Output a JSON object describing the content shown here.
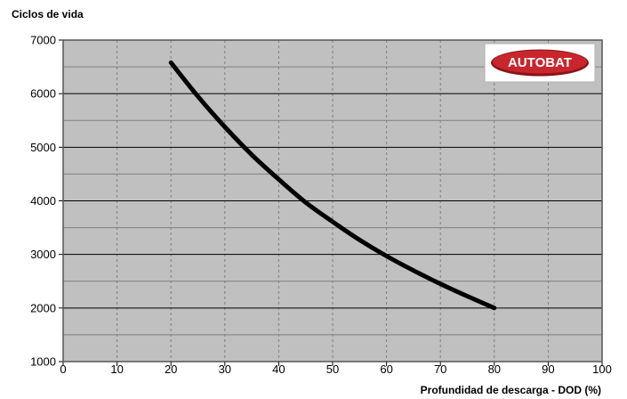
{
  "chart_data": {
    "type": "line",
    "ylabel": "Ciclos de vida",
    "xlabel": "Profundidad de descarga - DOD (%)",
    "xlim": [
      0,
      100
    ],
    "ylim": [
      1000,
      7000
    ],
    "x_ticks": [
      0,
      10,
      20,
      30,
      40,
      50,
      60,
      70,
      80,
      90,
      100
    ],
    "y_ticks": [
      1000,
      2000,
      3000,
      4000,
      5000,
      6000,
      7000
    ],
    "grid": true,
    "logo": "AUTOBAT",
    "series": [
      {
        "color": "#000000",
        "x": [
          20,
          25,
          30,
          35,
          40,
          45,
          50,
          55,
          60,
          65,
          70,
          75,
          80
        ],
        "y": [
          6580,
          5950,
          5380,
          4860,
          4400,
          3970,
          3610,
          3270,
          2970,
          2700,
          2450,
          2220,
          2000
        ]
      }
    ],
    "colors": {
      "plot_background": "#c0c0c0",
      "major_grid": "#000000",
      "minor_grid": "#7f7f7f",
      "logo_red": "#c8262c"
    }
  }
}
